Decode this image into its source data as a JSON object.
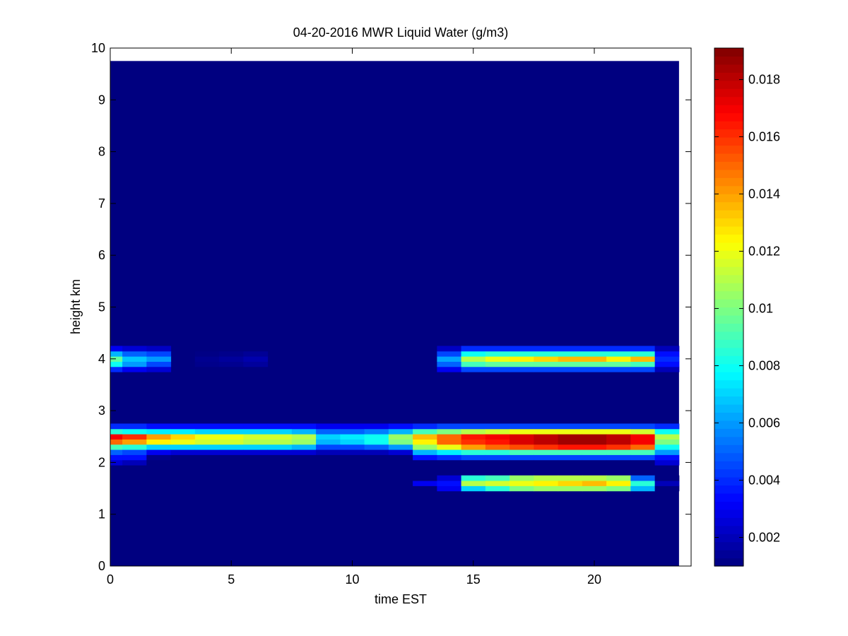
{
  "chart_data": {
    "type": "heatmap",
    "title": "04-20-2016 MWR Liquid Water (g/m3)",
    "xlabel": "time EST",
    "ylabel": "height km",
    "xlim": [
      0,
      24
    ],
    "ylim": [
      0,
      10
    ],
    "data_extent": {
      "x": [
        0,
        23.5
      ],
      "y": [
        0,
        9.75
      ]
    },
    "x_ticks": [
      "0",
      "5",
      "10",
      "15",
      "20"
    ],
    "y_ticks": [
      "0",
      "1",
      "2",
      "3",
      "4",
      "5",
      "6",
      "7",
      "8",
      "9",
      "10"
    ],
    "colormap": "jet",
    "colorbar": {
      "range": [
        0.001,
        0.0191
      ],
      "ticks": [
        "0.002",
        "0.004",
        "0.006",
        "0.008",
        "0.01",
        "0.012",
        "0.014",
        "0.016",
        "0.018"
      ],
      "placement": "right"
    },
    "background_value": 0.001,
    "cell_width_hours": 1,
    "cell_height_km": 0.1,
    "bands": [
      {
        "name": "upper layer ~4 km",
        "rows_km": [
          3.8,
          3.9,
          4.0,
          4.1,
          4.2
        ],
        "cells": [
          {
            "t": 0,
            "v": [
              0.004,
              0.008,
              0.0095,
              0.0065,
              0.003
            ]
          },
          {
            "t": 1,
            "v": [
              0.003,
              0.006,
              0.0068,
              0.005,
              0.0025
            ]
          },
          {
            "t": 2,
            "v": [
              0.0025,
              0.0045,
              0.006,
              0.0045,
              0.0022
            ]
          },
          {
            "t": 4,
            "v": [
              0.001,
              0.0012,
              0.0013,
              0.0011,
              0.001
            ]
          },
          {
            "t": 5,
            "v": [
              0.001,
              0.0013,
              0.0015,
              0.0012,
              0.001
            ]
          },
          {
            "t": 6,
            "v": [
              0.001,
              0.0015,
              0.0018,
              0.0014,
              0.001
            ]
          },
          {
            "t": 14,
            "v": [
              0.003,
              0.005,
              0.0062,
              0.0045,
              0.0022
            ]
          },
          {
            "t": 15,
            "v": [
              0.0045,
              0.009,
              0.011,
              0.008,
              0.004
            ]
          },
          {
            "t": 16,
            "v": [
              0.0045,
              0.0095,
              0.012,
              0.0085,
              0.004
            ]
          },
          {
            "t": 17,
            "v": [
              0.0045,
              0.0095,
              0.0125,
              0.0085,
              0.004
            ]
          },
          {
            "t": 18,
            "v": [
              0.0045,
              0.0095,
              0.013,
              0.0085,
              0.004
            ]
          },
          {
            "t": 19,
            "v": [
              0.0045,
              0.0095,
              0.0135,
              0.0085,
              0.004
            ]
          },
          {
            "t": 20,
            "v": [
              0.0045,
              0.0095,
              0.0135,
              0.0085,
              0.004
            ]
          },
          {
            "t": 21,
            "v": [
              0.0045,
              0.0095,
              0.0125,
              0.0085,
              0.004
            ]
          },
          {
            "t": 22,
            "v": [
              0.0045,
              0.009,
              0.0135,
              0.0085,
              0.004
            ]
          },
          {
            "t": 23,
            "v": [
              0.002,
              0.0035,
              0.004,
              0.0035,
              0.002
            ]
          }
        ]
      },
      {
        "name": "main layer ~2.5 km",
        "rows_km": [
          2.0,
          2.1,
          2.2,
          2.3,
          2.4,
          2.5,
          2.6,
          2.7
        ],
        "cells": [
          {
            "t": 0,
            "v": [
              0.0025,
              0.0035,
              0.005,
              0.009,
              0.015,
              0.017,
              0.0085,
              0.004
            ]
          },
          {
            "t": 1,
            "v": [
              0.002,
              0.0035,
              0.0045,
              0.0085,
              0.014,
              0.016,
              0.008,
              0.004
            ]
          },
          {
            "t": 2,
            "v": [
              0.001,
              0.0012,
              0.003,
              0.007,
              0.0125,
              0.014,
              0.0075,
              0.0035
            ]
          },
          {
            "t": 3,
            "v": [
              0.001,
              0.001,
              0.0025,
              0.007,
              0.012,
              0.013,
              0.0075,
              0.0035
            ]
          },
          {
            "t": 4,
            "v": [
              0.001,
              0.001,
              0.0025,
              0.007,
              0.0115,
              0.012,
              0.007,
              0.0035
            ]
          },
          {
            "t": 5,
            "v": [
              0.001,
              0.001,
              0.0025,
              0.007,
              0.0115,
              0.012,
              0.007,
              0.0035
            ]
          },
          {
            "t": 6,
            "v": [
              0.001,
              0.001,
              0.0025,
              0.007,
              0.011,
              0.0115,
              0.007,
              0.0035
            ]
          },
          {
            "t": 7,
            "v": [
              0.001,
              0.001,
              0.0025,
              0.007,
              0.011,
              0.0115,
              0.007,
              0.0035
            ]
          },
          {
            "t": 8,
            "v": [
              0.001,
              0.001,
              0.0025,
              0.0065,
              0.0105,
              0.011,
              0.0065,
              0.0035
            ]
          },
          {
            "t": 9,
            "v": [
              0.001,
              0.001,
              0.002,
              0.0045,
              0.0065,
              0.007,
              0.005,
              0.003
            ]
          },
          {
            "t": 10,
            "v": [
              0.001,
              0.001,
              0.002,
              0.0045,
              0.007,
              0.0075,
              0.005,
              0.003
            ]
          },
          {
            "t": 11,
            "v": [
              0.001,
              0.001,
              0.002,
              0.005,
              0.008,
              0.008,
              0.0055,
              0.003
            ]
          },
          {
            "t": 12,
            "v": [
              0.001,
              0.001,
              0.0025,
              0.006,
              0.01,
              0.0105,
              0.0065,
              0.0035
            ]
          },
          {
            "t": 13,
            "v": [
              0.001,
              0.0035,
              0.0065,
              0.0105,
              0.0125,
              0.0135,
              0.009,
              0.004
            ]
          },
          {
            "t": 14,
            "v": [
              0.001,
              0.004,
              0.0075,
              0.012,
              0.015,
              0.015,
              0.01,
              0.0045
            ]
          },
          {
            "t": 15,
            "v": [
              0.001,
              0.0045,
              0.0085,
              0.014,
              0.016,
              0.0165,
              0.011,
              0.0045
            ]
          },
          {
            "t": 16,
            "v": [
              0.001,
              0.0045,
              0.0085,
              0.015,
              0.0165,
              0.017,
              0.0115,
              0.0045
            ]
          },
          {
            "t": 17,
            "v": [
              0.001,
              0.0045,
              0.009,
              0.0155,
              0.0175,
              0.0175,
              0.012,
              0.0045
            ]
          },
          {
            "t": 18,
            "v": [
              0.001,
              0.0045,
              0.009,
              0.016,
              0.018,
              0.018,
              0.012,
              0.0045
            ]
          },
          {
            "t": 19,
            "v": [
              0.001,
              0.0045,
              0.009,
              0.0165,
              0.0185,
              0.0185,
              0.012,
              0.0045
            ]
          },
          {
            "t": 20,
            "v": [
              0.001,
              0.0045,
              0.009,
              0.0165,
              0.0185,
              0.0185,
              0.012,
              0.0045
            ]
          },
          {
            "t": 21,
            "v": [
              0.001,
              0.0045,
              0.009,
              0.016,
              0.018,
              0.018,
              0.012,
              0.0045
            ]
          },
          {
            "t": 22,
            "v": [
              0.001,
              0.0045,
              0.009,
              0.015,
              0.017,
              0.017,
              0.0115,
              0.0045
            ]
          },
          {
            "t": 23,
            "v": [
              0.0025,
              0.0035,
              0.006,
              0.008,
              0.01,
              0.011,
              0.008,
              0.004
            ]
          }
        ]
      },
      {
        "name": "lower layer ~1.6 km",
        "rows_km": [
          1.5,
          1.6,
          1.7
        ],
        "cells": [
          {
            "t": 13,
            "v": [
              0.001,
              0.003,
              0.001
            ]
          },
          {
            "t": 14,
            "v": [
              0.003,
              0.0035,
              0.0025
            ]
          },
          {
            "t": 15,
            "v": [
              0.007,
              0.011,
              0.0085
            ]
          },
          {
            "t": 16,
            "v": [
              0.0085,
              0.0115,
              0.009
            ]
          },
          {
            "t": 17,
            "v": [
              0.01,
              0.012,
              0.0105
            ]
          },
          {
            "t": 18,
            "v": [
              0.0105,
              0.0125,
              0.011
            ]
          },
          {
            "t": 19,
            "v": [
              0.0105,
              0.013,
              0.011
            ]
          },
          {
            "t": 20,
            "v": [
              0.0105,
              0.0135,
              0.011
            ]
          },
          {
            "t": 21,
            "v": [
              0.01,
              0.0125,
              0.0105
            ]
          },
          {
            "t": 22,
            "v": [
              0.0065,
              0.0085,
              0.005
            ]
          },
          {
            "t": 23,
            "v": [
              0.001,
              0.002,
              0.001
            ]
          }
        ]
      }
    ]
  }
}
